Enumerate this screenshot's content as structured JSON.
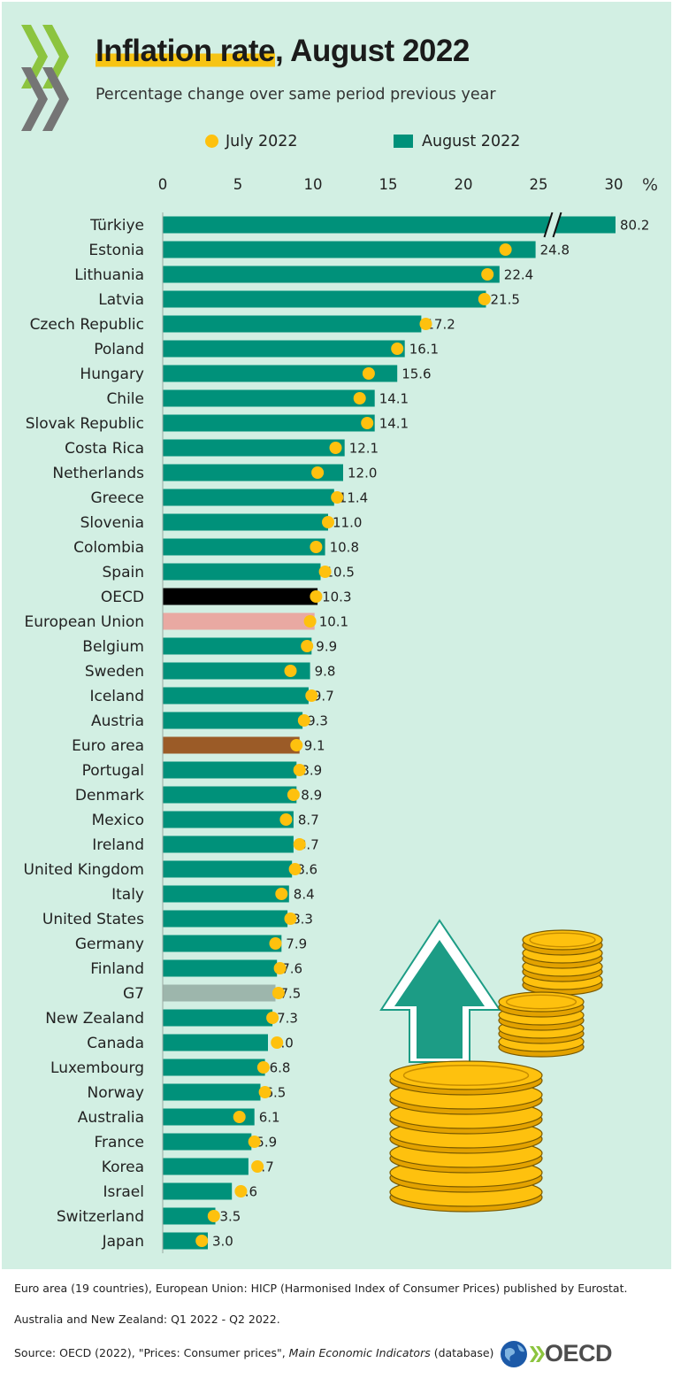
{
  "header": {
    "title_highlight": "Inflation rate",
    "title_rest": ", August 2022",
    "subtitle": "Percentage change over same period previous year"
  },
  "legend": {
    "july": "July 2022",
    "august": "August 2022"
  },
  "footer": {
    "note1": "Euro area (19 countries), European Union: HICP (Harmonised Index of Consumer Prices) published by Eurostat.",
    "note2": "Australia and New Zealand: Q1 2022 - Q2 2022.",
    "source_prefix": "Source: OECD (2022), \"Prices: Consumer prices\", ",
    "source_italic": "Main Economic Indicators",
    "source_suffix": " (database)",
    "logo_text": "OECD"
  },
  "colors": {
    "bar_default": "#00917a",
    "bar_oecd": "#000000",
    "bar_eu": "#e9a9a2",
    "bar_euro_area": "#9b5b27",
    "bar_g7": "#9db6ac",
    "dot": "#fec10e",
    "background": "#d2efe3",
    "title_highlight": "#f7c414"
  },
  "chart_data": {
    "type": "bar",
    "orientation": "horizontal",
    "x_ticks": [
      "0",
      "5",
      "10",
      "15",
      "20",
      "25",
      "30"
    ],
    "unit_label": "%",
    "xlim": [
      0,
      30
    ],
    "axis_break": true,
    "categories": [
      "Türkiye",
      "Estonia",
      "Lithuania",
      "Latvia",
      "Czech Republic",
      "Poland",
      "Hungary",
      "Chile",
      "Slovak Republic",
      "Costa Rica",
      "Netherlands",
      "Greece",
      "Slovenia",
      "Colombia",
      "Spain",
      "OECD",
      "European Union",
      "Belgium",
      "Sweden",
      "Iceland",
      "Austria",
      "Euro area",
      "Portugal",
      "Denmark",
      "Mexico",
      "Ireland",
      "United Kingdom",
      "Italy",
      "United States",
      "Germany",
      "Finland",
      "G7",
      "New Zealand",
      "Canada",
      "Luxembourg",
      "Norway",
      "Australia",
      "France",
      "Korea",
      "Israel",
      "Switzerland",
      "Japan"
    ],
    "series": [
      {
        "name": "August 2022",
        "mark": "bar",
        "values": [
          80.2,
          24.8,
          22.4,
          21.5,
          17.2,
          16.1,
          15.6,
          14.1,
          14.1,
          12.1,
          12.0,
          11.4,
          11.0,
          10.8,
          10.5,
          10.3,
          10.1,
          9.9,
          9.8,
          9.7,
          9.3,
          9.1,
          8.9,
          8.9,
          8.7,
          8.7,
          8.6,
          8.4,
          8.3,
          7.9,
          7.6,
          7.5,
          7.3,
          7.0,
          6.8,
          6.5,
          6.1,
          5.9,
          5.7,
          4.6,
          3.5,
          3.0
        ],
        "labels": [
          "80.2",
          "24.8",
          "22.4",
          "21.5",
          "17.2",
          "16.1",
          "15.6",
          "14.1",
          "14.1",
          "12.1",
          "12.0",
          "11.4",
          "11.0",
          "10.8",
          "10.5",
          "10.3",
          "10.1",
          "9.9",
          "9.8",
          "9.7",
          "9.3",
          "9.1",
          "8.9",
          "8.9",
          "8.7",
          "8.7",
          "8.6",
          "8.4",
          "8.3",
          "7.9",
          "7.6",
          "7.5",
          "7.3",
          "7.0",
          "6.8",
          "6.5",
          "6.1",
          "5.9",
          "5.7",
          "4.6",
          "3.5",
          "3.0"
        ]
      },
      {
        "name": "July 2022",
        "mark": "dot",
        "values": [
          null,
          22.8,
          21.6,
          21.4,
          17.5,
          15.6,
          13.7,
          13.1,
          13.6,
          11.5,
          10.3,
          11.6,
          11.0,
          10.2,
          10.8,
          10.2,
          9.8,
          9.6,
          8.5,
          9.9,
          9.4,
          8.9,
          9.1,
          8.7,
          8.2,
          9.1,
          8.8,
          7.9,
          8.5,
          7.5,
          7.8,
          7.7,
          7.3,
          7.6,
          6.7,
          6.8,
          5.1,
          6.1,
          6.3,
          5.2,
          3.4,
          2.6
        ]
      }
    ],
    "highlight": {
      "OECD": "bar_oecd",
      "European Union": "bar_eu",
      "Euro area": "bar_euro_area",
      "G7": "bar_g7"
    },
    "legend_position": "top"
  }
}
